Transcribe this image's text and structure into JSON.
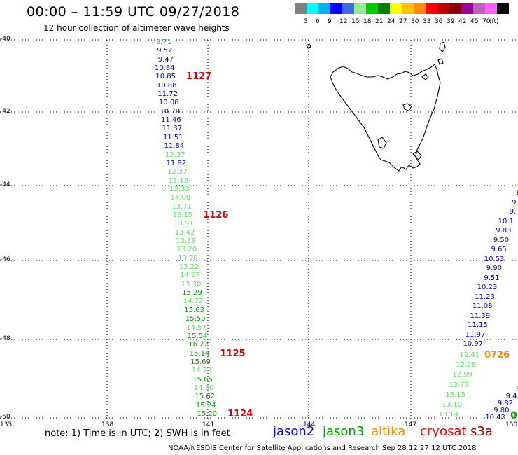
{
  "header": {
    "title": "00:00 – 11:59 UTC 09/27/2018",
    "subtitle": "12 hour collection of altimeter wave heights"
  },
  "legend": {
    "colors": [
      "#808080",
      "#00ffff",
      "#00b0f0",
      "#0000ff",
      "#4169e1",
      "#90ee90",
      "#00cc00",
      "#008000",
      "#ffff00",
      "#ffc000",
      "#ff8c00",
      "#ff0000",
      "#c00000",
      "#8b0000",
      "#9b009b",
      "#c060c0",
      "#ff60ff",
      "#000000"
    ],
    "labels": [
      "3",
      "6",
      "9",
      "12",
      "15",
      "18",
      "21",
      "24",
      "27",
      "30",
      "33",
      "36",
      "39",
      "42",
      "45",
      "70",
      "(ft)"
    ]
  },
  "axes": {
    "lat_labels": [
      "-40",
      "-42",
      "-44",
      "-46",
      "-48",
      "-50"
    ],
    "lon_labels": [
      "135",
      "138",
      "141",
      "144",
      "147",
      "150"
    ]
  },
  "tracks": {
    "west": [
      {
        "v": "8.71",
        "c": "#00b0f0"
      },
      {
        "v": "9.52",
        "c": "#0000cd"
      },
      {
        "v": "9.47",
        "c": "#0000cd"
      },
      {
        "v": "10.84",
        "c": "#0000cd"
      },
      {
        "v": "10.85",
        "c": "#0000cd"
      },
      {
        "v": "10.88",
        "c": "#0000cd"
      },
      {
        "v": "11.72",
        "c": "#0000cd"
      },
      {
        "v": "10.08",
        "c": "#0000cd"
      },
      {
        "v": "10.79",
        "c": "#0000cd"
      },
      {
        "v": "11.46",
        "c": "#0000cd"
      },
      {
        "v": "11.37",
        "c": "#0000cd"
      },
      {
        "v": "11.51",
        "c": "#0000cd"
      },
      {
        "v": "11.84",
        "c": "#0000cd"
      },
      {
        "v": "12.37",
        "c": "#66dd66"
      },
      {
        "v": "11.82",
        "c": "#0000cd"
      },
      {
        "v": "12.37",
        "c": "#66dd66"
      },
      {
        "v": "13.18",
        "c": "#66dd66"
      },
      {
        "v": "13.33",
        "c": "#66dd66"
      },
      {
        "v": "14.08",
        "c": "#66dd66"
      },
      {
        "v": "13.71",
        "c": "#66dd66"
      },
      {
        "v": "13.15",
        "c": "#66dd66"
      },
      {
        "v": "13.91",
        "c": "#66dd66"
      },
      {
        "v": "13.42",
        "c": "#66dd66"
      },
      {
        "v": "13.38",
        "c": "#66dd66"
      },
      {
        "v": "13.20",
        "c": "#66dd66"
      },
      {
        "v": "13.78",
        "c": "#66dd66"
      },
      {
        "v": "13.22",
        "c": "#66dd66"
      },
      {
        "v": "14.67",
        "c": "#66dd66"
      },
      {
        "v": "13.30",
        "c": "#66dd66"
      },
      {
        "v": "15.29",
        "c": "#00a000"
      },
      {
        "v": "14.72",
        "c": "#66dd66"
      },
      {
        "v": "15.63",
        "c": "#00a000"
      },
      {
        "v": "15.50",
        "c": "#00a000"
      },
      {
        "v": "14.57",
        "c": "#66dd66"
      },
      {
        "v": "15.54",
        "c": "#00a000"
      },
      {
        "v": "16.22",
        "c": "#00a000"
      },
      {
        "v": "15.14",
        "c": "#00a000"
      },
      {
        "v": "15.69",
        "c": "#00a000"
      },
      {
        "v": "14.73",
        "c": "#66dd66"
      },
      {
        "v": "15.65",
        "c": "#00a000"
      },
      {
        "v": "14.30",
        "c": "#66dd66"
      },
      {
        "v": "15.62",
        "c": "#00a000"
      },
      {
        "v": "15.24",
        "c": "#00a000"
      },
      {
        "v": "15.20",
        "c": "#00a000"
      }
    ],
    "west_times": [
      {
        "v": "1127",
        "row": 4
      },
      {
        "v": "1126",
        "row": 20
      },
      {
        "v": "1125",
        "row": 36
      },
      {
        "v": "1124",
        "row": 43
      }
    ],
    "east_blue": [
      "8",
      "9.",
      "9.",
      "10.1",
      "9.83",
      "9.50",
      "9.65",
      "10.53",
      "9.90",
      "9.51",
      "10.23",
      "11.23",
      "11.08",
      "11.39",
      "11.15",
      "11.97",
      "10.97"
    ],
    "east_green": [
      "12.41",
      "12.28",
      "12.99",
      "13.77",
      "13.15",
      "13.10",
      "13.14"
    ],
    "east_time": "0726",
    "corner": [
      {
        "v": "8",
        "c": "#00b0f0"
      },
      {
        "v": "9.4",
        "c": "#0000cd"
      },
      {
        "v": "9.82",
        "c": "#0000cd"
      },
      {
        "v": "9.80",
        "c": "#0000cd"
      },
      {
        "v": "10.42",
        "c": "#0000cd"
      }
    ],
    "corner_extra": "0"
  },
  "footer": {
    "note": "note: 1) Time is in UTC; 2) SWH is in feet",
    "satellites": [
      {
        "name": "jason2",
        "color": "#0000ff"
      },
      {
        "name": "jason3",
        "color": "#00a000"
      },
      {
        "name": "altika",
        "color": "#ff8c00"
      },
      {
        "name": "cryosat",
        "color": "#ff0000"
      },
      {
        "name": "s3a",
        "color": "#a00000"
      }
    ],
    "credit": "NOAA/NESDIS Center for Satellite Applications and Research   Sep 28 12:27:12 UTC 2018"
  }
}
